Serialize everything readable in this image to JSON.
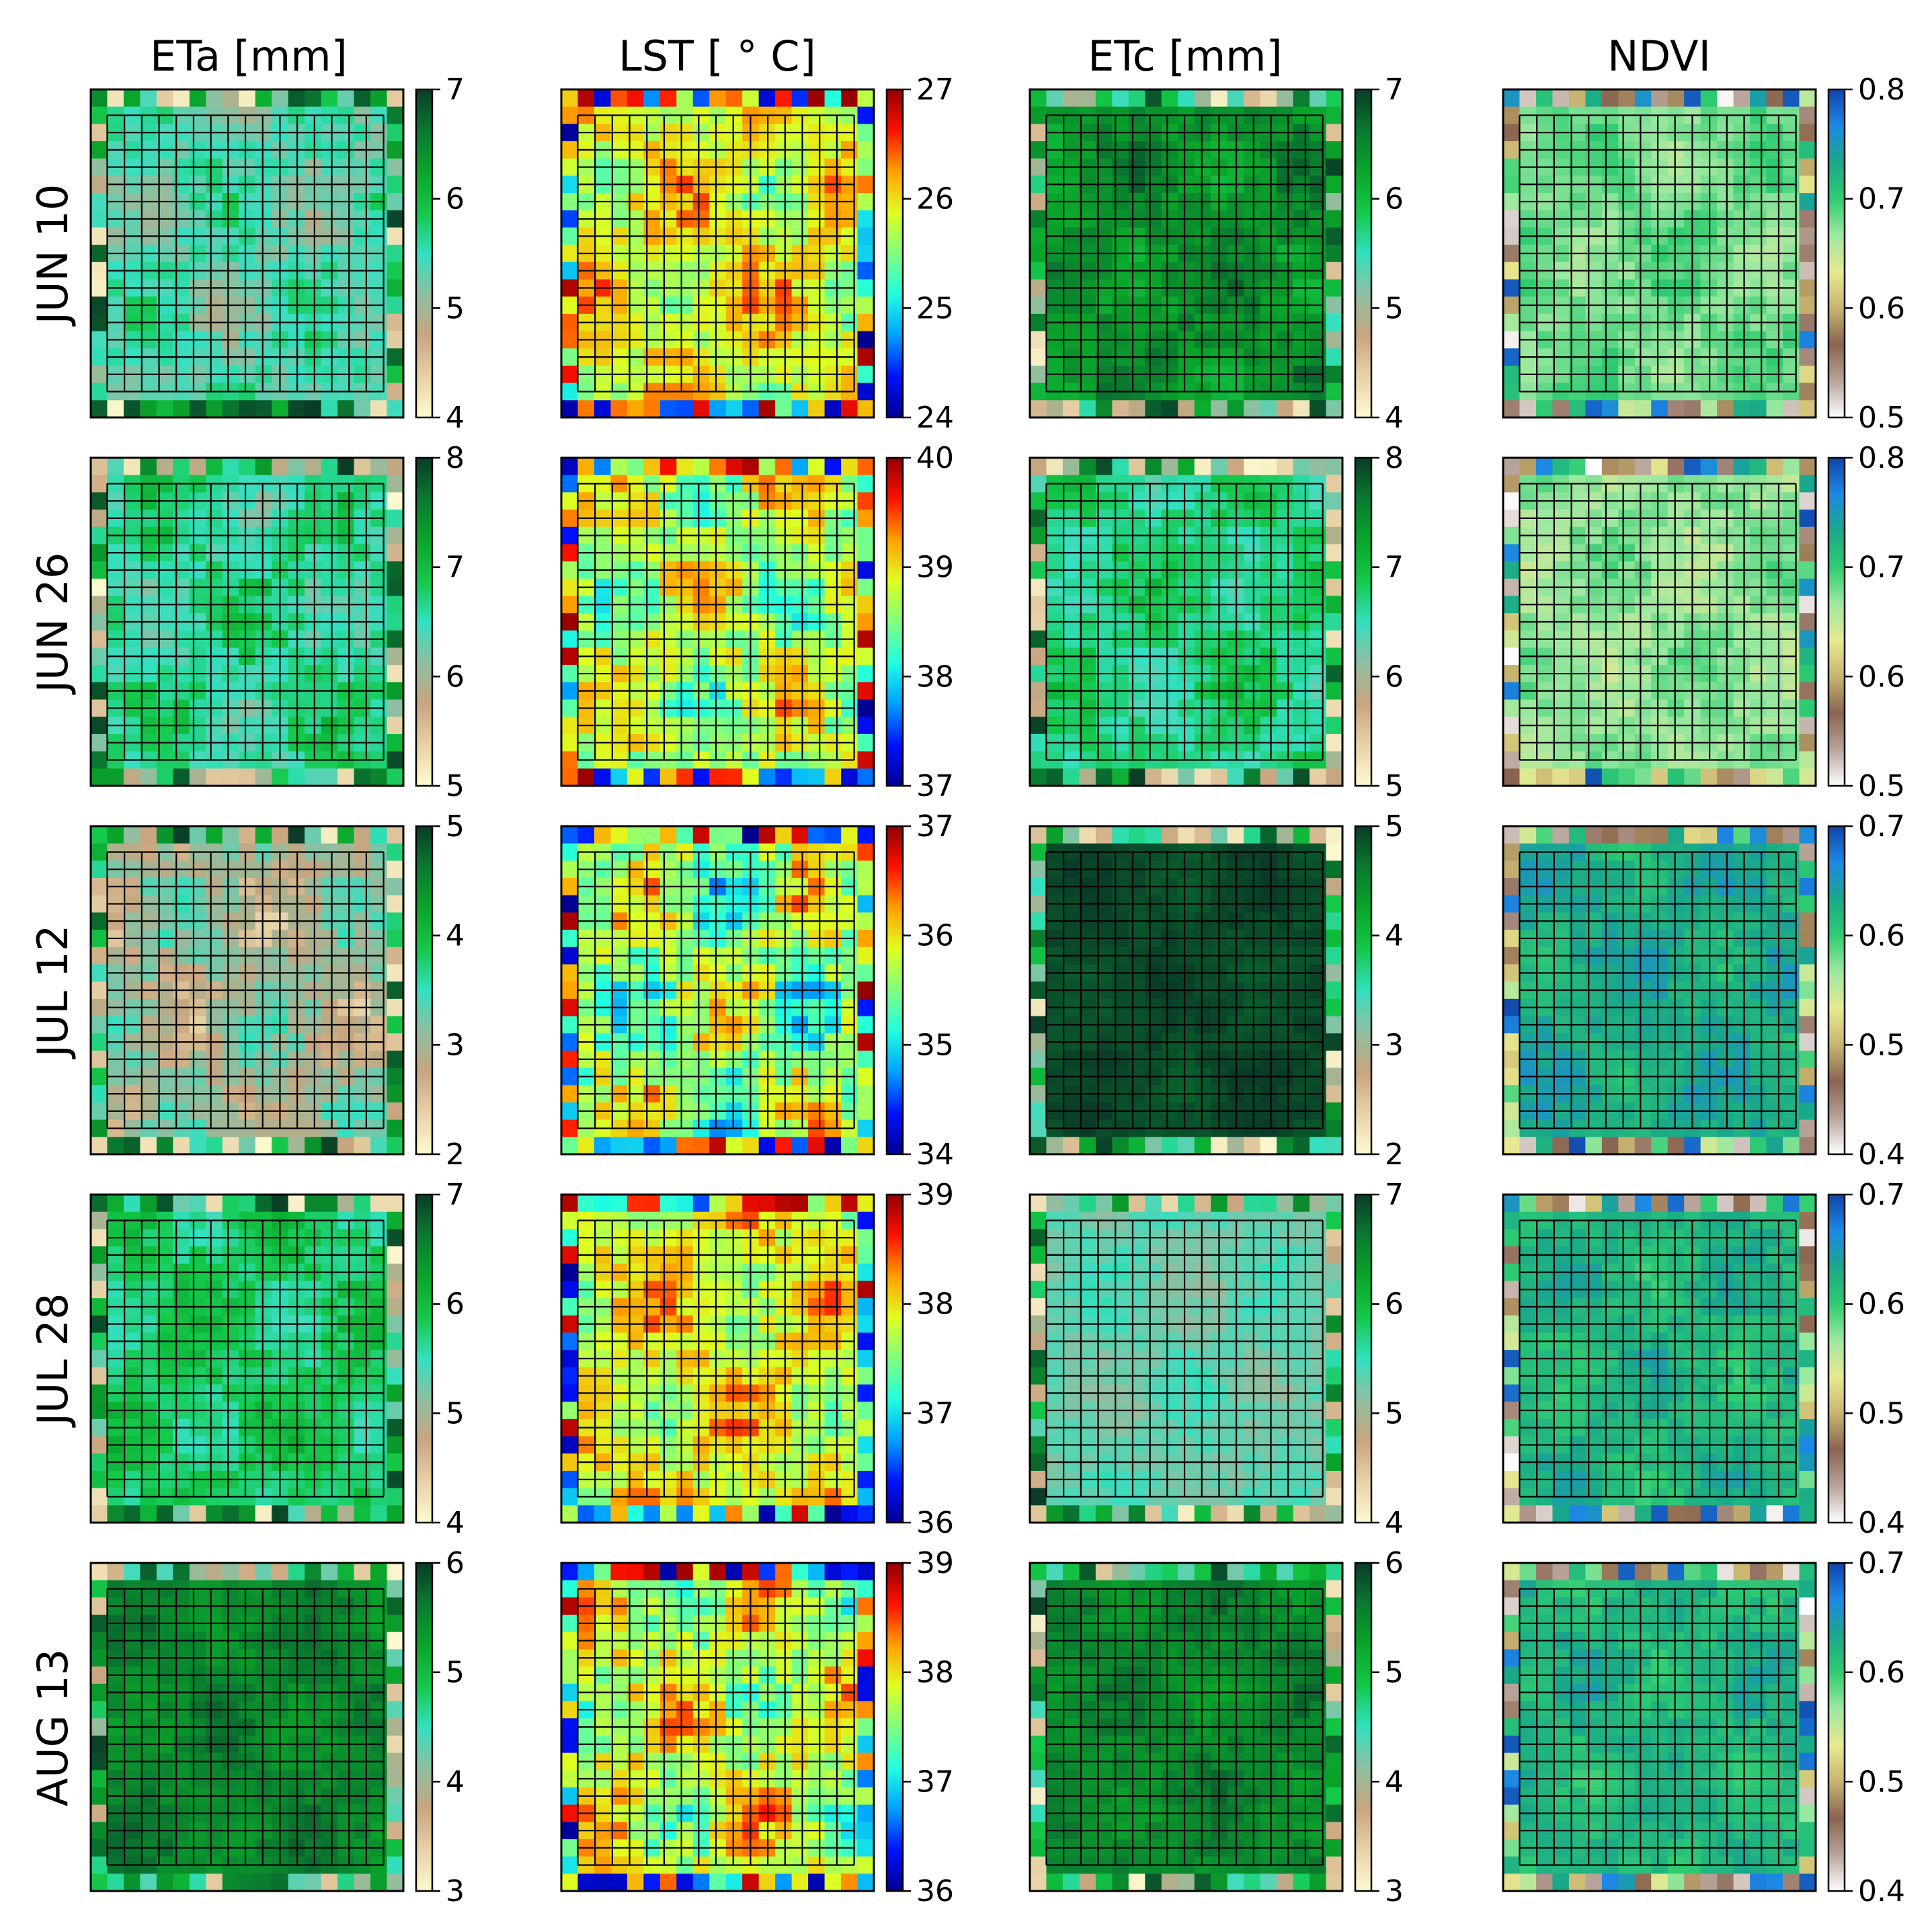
{
  "figure": {
    "columns": [
      "ETa [mm]",
      "LST [ ° C]",
      "ETc [mm]",
      "NDVI"
    ],
    "rows": [
      "JUN 10",
      "JUN 26",
      "JUL 12",
      "JUL 28",
      "AUG 13"
    ]
  },
  "colormaps": {
    "ETa [mm]": [
      "#fdfad0",
      "#e7d2a6",
      "#c9a57f",
      "#8fbfa0",
      "#33e0c0",
      "#14c84a",
      "#0aa52a",
      "#0a7a30",
      "#0a3b27"
    ],
    "LST [ ° C]": [
      "#00008f",
      "#0010ff",
      "#00a0ff",
      "#20ffdf",
      "#80ff80",
      "#dfff20",
      "#ffa000",
      "#ff1000",
      "#8f0000"
    ],
    "ETc [mm]": [
      "#fdfad0",
      "#e7d2a6",
      "#c9a57f",
      "#8fbfa0",
      "#33e0c0",
      "#14c84a",
      "#0aa52a",
      "#0a7a30",
      "#0a3b27"
    ],
    "NDVI": [
      "#ffffff",
      "#b8a49a",
      "#8a6450",
      "#c8b470",
      "#e8e890",
      "#9ce8a0",
      "#2ecc71",
      "#1aa88a",
      "#1e88e5",
      "#1144a8"
    ]
  },
  "chart_data": [
    {
      "type": "heatmap",
      "column": "ETa [mm]",
      "row": "JUN 10",
      "colorbar": {
        "ticks": [
          "7",
          "6",
          "5",
          "4"
        ],
        "range": [
          4,
          7
        ]
      },
      "base_value": 5.4,
      "noise": 0.4
    },
    {
      "type": "heatmap",
      "column": "LST [ ° C]",
      "row": "JUN 10",
      "colorbar": {
        "ticks": [
          "27",
          "26",
          "25",
          "24"
        ],
        "range": [
          24,
          27
        ]
      },
      "base_value": 25.9,
      "noise": 0.5
    },
    {
      "type": "heatmap",
      "column": "ETc [mm]",
      "row": "JUN 10",
      "colorbar": {
        "ticks": [
          "7",
          "6",
          "5",
          "4"
        ],
        "range": [
          4,
          7
        ]
      },
      "base_value": 6.4,
      "noise": 0.3
    },
    {
      "type": "heatmap",
      "column": "NDVI",
      "row": "JUN 10",
      "colorbar": {
        "ticks": [
          "0.8",
          "0.7",
          "0.6",
          "0.5"
        ],
        "range": [
          0.5,
          0.8
        ]
      },
      "base_value": 0.68,
      "noise": 0.02
    },
    {
      "type": "heatmap",
      "column": "ETa [mm]",
      "row": "JUN 26",
      "colorbar": {
        "ticks": [
          "8",
          "7",
          "6",
          "5"
        ],
        "range": [
          5,
          8
        ]
      },
      "base_value": 6.6,
      "noise": 0.4
    },
    {
      "type": "heatmap",
      "column": "LST [ ° C]",
      "row": "JUN 26",
      "colorbar": {
        "ticks": [
          "40",
          "39",
          "38",
          "37"
        ],
        "range": [
          37,
          40
        ]
      },
      "base_value": 38.7,
      "noise": 0.6
    },
    {
      "type": "heatmap",
      "column": "ETc [mm]",
      "row": "JUN 26",
      "colorbar": {
        "ticks": [
          "8",
          "7",
          "6",
          "5"
        ],
        "range": [
          5,
          8
        ]
      },
      "base_value": 6.7,
      "noise": 0.3
    },
    {
      "type": "heatmap",
      "column": "NDVI",
      "row": "JUN 26",
      "colorbar": {
        "ticks": [
          "0.8",
          "0.7",
          "0.6",
          "0.5"
        ],
        "range": [
          0.5,
          0.8
        ]
      },
      "base_value": 0.67,
      "noise": 0.02
    },
    {
      "type": "heatmap",
      "column": "ETa [mm]",
      "row": "JUL 12",
      "colorbar": {
        "ticks": [
          "5",
          "4",
          "3",
          "2"
        ],
        "range": [
          2,
          5
        ]
      },
      "base_value": 3.0,
      "noise": 0.5
    },
    {
      "type": "heatmap",
      "column": "LST [ ° C]",
      "row": "JUL 12",
      "colorbar": {
        "ticks": [
          "37",
          "36",
          "35",
          "34"
        ],
        "range": [
          34,
          37
        ]
      },
      "base_value": 35.6,
      "noise": 0.7
    },
    {
      "type": "heatmap",
      "column": "ETc [mm]",
      "row": "JUL 12",
      "colorbar": {
        "ticks": [
          "5",
          "4",
          "3",
          "2"
        ],
        "range": [
          2,
          5
        ]
      },
      "base_value": 4.9,
      "noise": 0.1
    },
    {
      "type": "heatmap",
      "column": "NDVI",
      "row": "JUL 12",
      "colorbar": {
        "ticks": [
          "0.7",
          "0.6",
          "0.5",
          "0.4"
        ],
        "range": [
          0.4,
          0.7
        ]
      },
      "base_value": 0.63,
      "noise": 0.02
    },
    {
      "type": "heatmap",
      "column": "ETa [mm]",
      "row": "JUL 28",
      "colorbar": {
        "ticks": [
          "7",
          "6",
          "5",
          "4"
        ],
        "range": [
          4,
          7
        ]
      },
      "base_value": 5.8,
      "noise": 0.3
    },
    {
      "type": "heatmap",
      "column": "LST [ ° C]",
      "row": "JUL 28",
      "colorbar": {
        "ticks": [
          "39",
          "38",
          "37",
          "36"
        ],
        "range": [
          36,
          39
        ]
      },
      "base_value": 37.9,
      "noise": 0.5
    },
    {
      "type": "heatmap",
      "column": "ETc [mm]",
      "row": "JUL 28",
      "colorbar": {
        "ticks": [
          "7",
          "6",
          "5",
          "4"
        ],
        "range": [
          4,
          7
        ]
      },
      "base_value": 5.3,
      "noise": 0.2
    },
    {
      "type": "heatmap",
      "column": "NDVI",
      "row": "JUL 28",
      "colorbar": {
        "ticks": [
          "0.7",
          "0.6",
          "0.5",
          "0.4"
        ],
        "range": [
          0.4,
          0.7
        ]
      },
      "base_value": 0.62,
      "noise": 0.02
    },
    {
      "type": "heatmap",
      "column": "ETa [mm]",
      "row": "AUG 13",
      "colorbar": {
        "ticks": [
          "6",
          "5",
          "4",
          "3"
        ],
        "range": [
          3,
          6
        ]
      },
      "base_value": 5.5,
      "noise": 0.2
    },
    {
      "type": "heatmap",
      "column": "LST [ ° C]",
      "row": "AUG 13",
      "colorbar": {
        "ticks": [
          "39",
          "38",
          "37",
          "36"
        ],
        "range": [
          36,
          39
        ]
      },
      "base_value": 37.8,
      "noise": 0.6
    },
    {
      "type": "heatmap",
      "column": "ETc [mm]",
      "row": "AUG 13",
      "colorbar": {
        "ticks": [
          "6",
          "5",
          "4",
          "3"
        ],
        "range": [
          3,
          6
        ]
      },
      "base_value": 5.5,
      "noise": 0.2
    },
    {
      "type": "heatmap",
      "column": "NDVI",
      "row": "AUG 13",
      "colorbar": {
        "ticks": [
          "0.7",
          "0.6",
          "0.5",
          "0.4"
        ],
        "range": [
          0.4,
          0.7
        ]
      },
      "base_value": 0.62,
      "noise": 0.02
    }
  ]
}
